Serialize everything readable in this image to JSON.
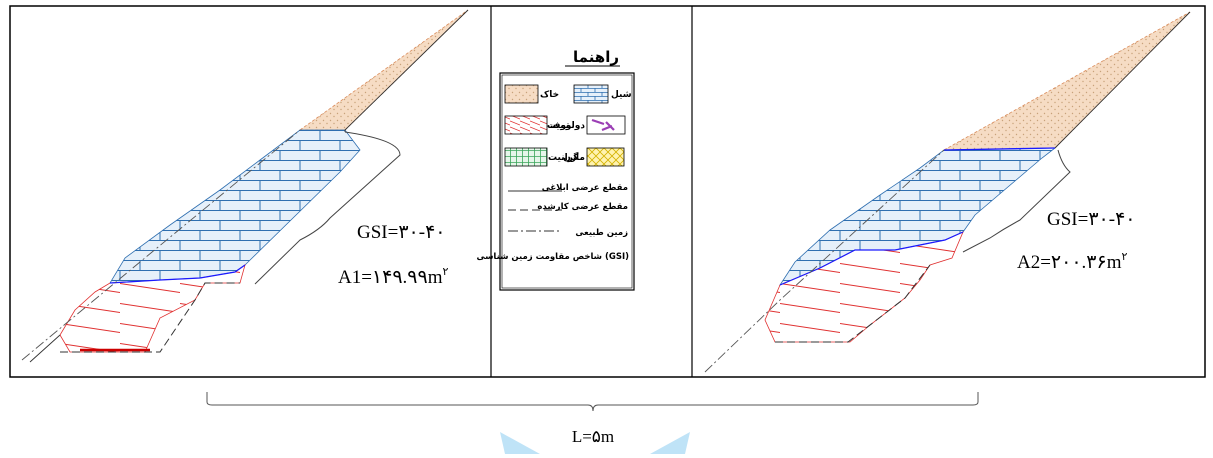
{
  "left_section": {
    "gsi_label": "GSI=۳۰-۴۰",
    "area_label": "A1=۱۴۹.۹۹m",
    "area_sup": "۲"
  },
  "right_section": {
    "gsi_label": "GSI=۳۰-۴۰",
    "area_label": "A2=۲۰۰.۳۶m",
    "area_sup": "۲"
  },
  "length_label": "L=۵m",
  "legend": {
    "title": "راهنما",
    "materials": [
      {
        "key": "shale",
        "label": "شیل"
      },
      {
        "key": "soil",
        "label": "خاک"
      },
      {
        "key": "dolomite",
        "label": "دولومیت"
      },
      {
        "key": "tuff",
        "label": "توف"
      },
      {
        "key": "marl",
        "label": "مارن"
      },
      {
        "key": "granite",
        "label": "گرانیت"
      }
    ],
    "lines": [
      {
        "key": "design",
        "label": "مقطع عرضی ابلاغی"
      },
      {
        "key": "executed",
        "label": "مقطع عرضی کارشده"
      },
      {
        "key": "natural",
        "label": "زمین طبیعی"
      }
    ],
    "gsi_note": "شاخص مقاومت زمین شناسی (GSI)"
  },
  "colors": {
    "soil_fill": "#f6dcc4",
    "soil_dot": "#c8a27a",
    "soil_edge": "#d98b5a",
    "rock_fill": "#e6f0fa",
    "rock_line": "#2f6fb0",
    "tuff_line": "#e03030",
    "contact": "#1a1aff",
    "dolomite": "#9b3fb5",
    "granite_fill": "#e6f6ea",
    "granite_line": "#3aa55a",
    "marl_fill": "#fff3b0",
    "marl_line": "#d4b200",
    "watermark": "#bfe3f7"
  }
}
